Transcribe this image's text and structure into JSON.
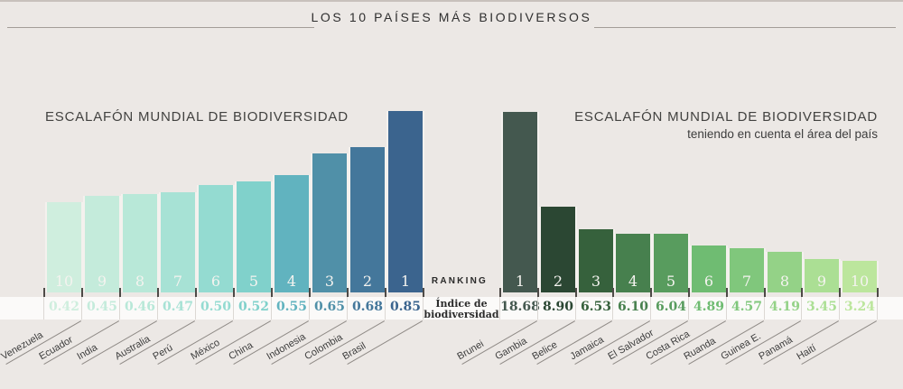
{
  "header": {
    "title": "LOS 10 PAÍSES MÁS BIODIVERSOS"
  },
  "middle": {
    "ranking_label": "RANKING",
    "index_line1": "Índice de",
    "index_line2": "biodiversidad"
  },
  "colors": {
    "background": "#ece8e5",
    "strip_background": "#fbfaf9",
    "tick": "#4e4a47",
    "separator": "#dcd8d4",
    "label_line": "#8f8a86",
    "rank_text": "#f4f3ef"
  },
  "chart_data": [
    {
      "type": "bar",
      "title": "ESCALAFÓN MUNDIAL DE BIODIVERSIDAD",
      "subtitle": "",
      "categories": [
        "Venezuela",
        "Ecuador",
        "India",
        "Australia",
        "Perú",
        "México",
        "China",
        "Indonesia",
        "Colombia",
        "Brasil"
      ],
      "values": [
        0.42,
        0.45,
        0.46,
        0.47,
        0.5,
        0.52,
        0.55,
        0.65,
        0.68,
        0.85
      ],
      "value_labels": [
        "0.42",
        "0.45",
        "0.46",
        "0.47",
        "0.50",
        "0.52",
        "0.55",
        "0.65",
        "0.68",
        "0.85"
      ],
      "ranks": [
        10,
        9,
        8,
        7,
        6,
        5,
        4,
        3,
        2,
        1
      ],
      "bar_colors": [
        "#cfeede",
        "#c4ebdb",
        "#b8e8d8",
        "#a7e2d5",
        "#94dbd1",
        "#80d1cb",
        "#61b3bf",
        "#5090a8",
        "#44779b",
        "#3b648e"
      ],
      "ylim": [
        0,
        0.85
      ],
      "legend": "none",
      "grid": "off"
    },
    {
      "type": "bar",
      "title": "ESCALAFÓN MUNDIAL DE BIODIVERSIDAD",
      "subtitle": "teniendo en cuenta el área del país",
      "categories": [
        "Brunei",
        "Gambia",
        "Belice",
        "Jamaica",
        "El Salvador",
        "Costa Rica",
        "Ruanda",
        "Guinea E.",
        "Panamá",
        "Haití"
      ],
      "values": [
        18.68,
        8.9,
        6.53,
        6.1,
        6.04,
        4.89,
        4.57,
        4.19,
        3.45,
        3.24
      ],
      "value_labels": [
        "18.68",
        "8.90",
        "6.53",
        "6.10",
        "6.04",
        "4.89",
        "4.57",
        "4.19",
        "3.45",
        "3.24"
      ],
      "ranks": [
        1,
        2,
        3,
        4,
        5,
        6,
        7,
        8,
        9,
        10
      ],
      "bar_colors": [
        "#44584f",
        "#2b4733",
        "#36613c",
        "#47804e",
        "#589c5e",
        "#6fbc72",
        "#80c77c",
        "#94d287",
        "#abdf94",
        "#bce69d"
      ],
      "ylim": [
        0,
        18.68
      ],
      "legend": "none",
      "grid": "off"
    }
  ]
}
